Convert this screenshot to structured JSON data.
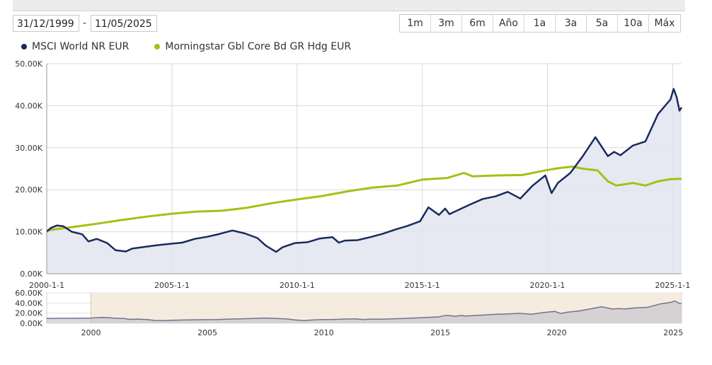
{
  "date_range": {
    "from": "31/12/1999",
    "separator": "-",
    "to": "11/05/2025"
  },
  "range_buttons": [
    "1m",
    "3m",
    "6m",
    "Año",
    "1a",
    "3a",
    "5a",
    "10a",
    "Máx"
  ],
  "colors": {
    "series1": "#1b2a5e",
    "series2": "#a8bf12",
    "area": "#e2e5ef",
    "navigator_mask": "#f5e9dc",
    "grid": "#d9d9d9"
  },
  "chart_data": {
    "type": "line",
    "legend_position": "top-left",
    "grid": true,
    "xlim": [
      "2000-01-01",
      "2025-05-11"
    ],
    "ylim": [
      0,
      50000
    ],
    "y_ticks": [
      "0.00K",
      "10.00K",
      "20.00K",
      "30.00K",
      "40.00K",
      "50.00K"
    ],
    "x_ticks": [
      "2000-1-1",
      "2005-1-1",
      "2010-1-1",
      "2015-1-1",
      "2020-1-1",
      "2025-1-1"
    ],
    "series": [
      {
        "name": "MSCI World NR EUR",
        "points": [
          [
            "2000-01-01",
            10000
          ],
          [
            "2000-03-01",
            10900
          ],
          [
            "2000-06-01",
            11500
          ],
          [
            "2000-09-01",
            11300
          ],
          [
            "2001-01-01",
            10000
          ],
          [
            "2001-06-01",
            9400
          ],
          [
            "2001-09-01",
            7700
          ],
          [
            "2002-01-01",
            8300
          ],
          [
            "2002-06-01",
            7300
          ],
          [
            "2002-10-01",
            5600
          ],
          [
            "2003-03-01",
            5300
          ],
          [
            "2003-06-01",
            6000
          ],
          [
            "2003-12-01",
            6400
          ],
          [
            "2004-06-01",
            6800
          ],
          [
            "2004-12-01",
            7100
          ],
          [
            "2005-06-01",
            7400
          ],
          [
            "2005-12-01",
            8300
          ],
          [
            "2006-06-01",
            8800
          ],
          [
            "2006-12-01",
            9500
          ],
          [
            "2007-06-01",
            10300
          ],
          [
            "2007-12-01",
            9600
          ],
          [
            "2008-06-01",
            8500
          ],
          [
            "2008-10-01",
            6700
          ],
          [
            "2009-03-01",
            5200
          ],
          [
            "2009-06-01",
            6300
          ],
          [
            "2009-12-01",
            7300
          ],
          [
            "2010-06-01",
            7500
          ],
          [
            "2010-12-01",
            8400
          ],
          [
            "2011-06-01",
            8700
          ],
          [
            "2011-09-01",
            7400
          ],
          [
            "2011-12-01",
            7900
          ],
          [
            "2012-06-01",
            8000
          ],
          [
            "2012-12-01",
            8700
          ],
          [
            "2013-06-01",
            9500
          ],
          [
            "2013-12-01",
            10500
          ],
          [
            "2014-06-01",
            11400
          ],
          [
            "2014-12-01",
            12500
          ],
          [
            "2015-04-01",
            15800
          ],
          [
            "2015-09-01",
            14000
          ],
          [
            "2015-12-01",
            15500
          ],
          [
            "2016-02-01",
            14200
          ],
          [
            "2016-12-01",
            16500
          ],
          [
            "2017-06-01",
            17800
          ],
          [
            "2017-12-01",
            18400
          ],
          [
            "2018-06-01",
            19500
          ],
          [
            "2018-12-01",
            17900
          ],
          [
            "2019-06-01",
            21000
          ],
          [
            "2019-12-01",
            23400
          ],
          [
            "2020-03-01",
            19200
          ],
          [
            "2020-06-01",
            21600
          ],
          [
            "2020-12-01",
            24000
          ],
          [
            "2021-06-01",
            28000
          ],
          [
            "2021-12-01",
            32500
          ],
          [
            "2022-06-01",
            28000
          ],
          [
            "2022-09-01",
            29000
          ],
          [
            "2022-12-01",
            28200
          ],
          [
            "2023-06-01",
            30500
          ],
          [
            "2023-12-01",
            31500
          ],
          [
            "2024-06-01",
            38000
          ],
          [
            "2024-12-01",
            41500
          ],
          [
            "2025-01-15",
            44000
          ],
          [
            "2025-03-01",
            42000
          ],
          [
            "2025-04-10",
            38800
          ],
          [
            "2025-05-11",
            39600
          ]
        ]
      },
      {
        "name": "Morningstar Gbl Core Bd GR Hdg EUR",
        "points": [
          [
            "2000-01-01",
            10300
          ],
          [
            "2001-01-01",
            11100
          ],
          [
            "2002-01-01",
            11900
          ],
          [
            "2003-01-01",
            12800
          ],
          [
            "2004-01-01",
            13600
          ],
          [
            "2005-01-01",
            14300
          ],
          [
            "2006-01-01",
            14800
          ],
          [
            "2007-01-01",
            15000
          ],
          [
            "2008-01-01",
            15700
          ],
          [
            "2009-01-01",
            16800
          ],
          [
            "2010-01-01",
            17700
          ],
          [
            "2011-01-01",
            18500
          ],
          [
            "2012-01-01",
            19600
          ],
          [
            "2013-01-01",
            20500
          ],
          [
            "2014-01-01",
            21000
          ],
          [
            "2015-01-01",
            22400
          ],
          [
            "2016-01-01",
            22800
          ],
          [
            "2016-09-01",
            24000
          ],
          [
            "2017-01-01",
            23200
          ],
          [
            "2018-01-01",
            23400
          ],
          [
            "2019-01-01",
            23500
          ],
          [
            "2020-01-01",
            24700
          ],
          [
            "2020-06-01",
            25100
          ],
          [
            "2021-01-01",
            25500
          ],
          [
            "2021-06-01",
            25000
          ],
          [
            "2022-01-01",
            24600
          ],
          [
            "2022-06-01",
            22000
          ],
          [
            "2022-10-01",
            21000
          ],
          [
            "2023-06-01",
            21600
          ],
          [
            "2023-12-01",
            21000
          ],
          [
            "2024-06-01",
            22000
          ],
          [
            "2024-12-01",
            22500
          ],
          [
            "2025-05-11",
            22600
          ]
        ]
      }
    ]
  },
  "navigator": {
    "y_ticks": [
      "0.00K",
      "20.00K",
      "40.00K",
      "60.00K"
    ],
    "x_ticks": [
      "2000",
      "2005",
      "2010",
      "2015",
      "2020",
      "2025"
    ],
    "ylim": [
      0,
      60000
    ]
  }
}
